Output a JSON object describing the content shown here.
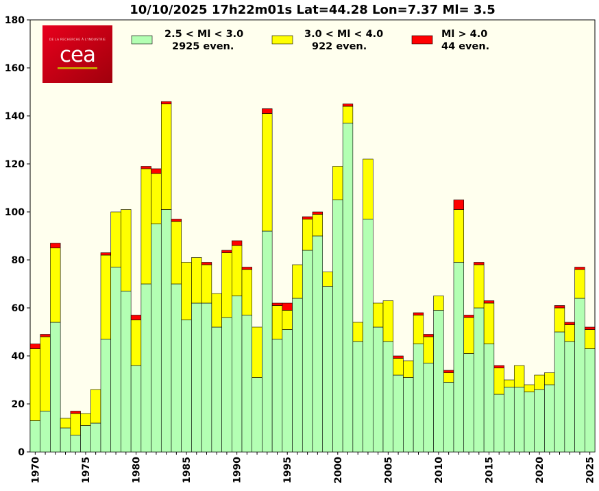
{
  "chart_data": {
    "type": "bar",
    "stacked": true,
    "title": "10/10/2025 17h22m01s Lat=44.28 Lon=7.37 Ml= 3.5",
    "xlabel": "",
    "ylabel": "",
    "ylim": [
      0,
      180
    ],
    "yticks": [
      0,
      20,
      40,
      60,
      80,
      100,
      120,
      140,
      160,
      180
    ],
    "xticks": [
      "1970",
      "1975",
      "1980",
      "1985",
      "1990",
      "1995",
      "2000",
      "2005",
      "2010",
      "2015",
      "2020",
      "2025"
    ],
    "x": [
      1970,
      1971,
      1972,
      1973,
      1974,
      1975,
      1976,
      1977,
      1978,
      1979,
      1980,
      1981,
      1982,
      1983,
      1984,
      1985,
      1986,
      1987,
      1988,
      1989,
      1990,
      1991,
      1992,
      1993,
      1994,
      1995,
      1996,
      1997,
      1998,
      1999,
      2000,
      2001,
      2002,
      2003,
      2004,
      2005,
      2006,
      2007,
      2008,
      2009,
      2010,
      2011,
      2012,
      2013,
      2014,
      2015,
      2016,
      2017,
      2018,
      2019,
      2020,
      2021,
      2022,
      2023,
      2024,
      2025
    ],
    "series": [
      {
        "name": "2.5 < Ml <  3.0",
        "count_label": "2925 even.",
        "color": "#b3ffb3",
        "values": [
          13,
          17,
          54,
          10,
          7,
          11,
          12,
          47,
          77,
          67,
          36,
          70,
          95,
          101,
          70,
          55,
          62,
          62,
          52,
          56,
          65,
          57,
          31,
          92,
          47,
          51,
          64,
          84,
          90,
          69,
          105,
          137,
          46,
          97,
          52,
          46,
          32,
          31,
          45,
          37,
          59,
          29,
          79,
          41,
          60,
          45,
          24,
          27,
          27,
          25,
          26,
          28,
          50,
          46,
          64,
          43
        ]
      },
      {
        "name": "3.0 < Ml <  4.0",
        "count_label": "922 even.",
        "color": "#ffff00",
        "values": [
          30,
          31,
          31,
          4,
          9,
          5,
          14,
          35,
          23,
          34,
          19,
          48,
          21,
          44,
          26,
          24,
          19,
          16,
          14,
          27,
          21,
          19,
          21,
          49,
          14,
          8,
          14,
          13,
          9,
          6,
          14,
          7,
          8,
          25,
          10,
          17,
          7,
          7,
          12,
          11,
          6,
          4,
          22,
          15,
          18,
          17,
          11,
          3,
          9,
          3,
          6,
          5,
          10,
          7,
          12,
          8
        ]
      },
      {
        "name": "Ml >  4.0",
        "count_label": "44 even.",
        "color": "#ff0000",
        "values": [
          2,
          1,
          2,
          0,
          1,
          0,
          0,
          1,
          0,
          0,
          2,
          1,
          2,
          1,
          1,
          0,
          0,
          1,
          0,
          1,
          2,
          1,
          0,
          2,
          1,
          3,
          0,
          1,
          1,
          0,
          0,
          1,
          0,
          0,
          0,
          0,
          1,
          0,
          1,
          1,
          0,
          1,
          4,
          1,
          1,
          1,
          1,
          0,
          0,
          0,
          0,
          0,
          1,
          1,
          1,
          1
        ]
      }
    ],
    "legend_position": "top",
    "background": "#ffffee",
    "logo_text": {
      "small": "DE LA RECHERCHE À L'INDUSTRIE",
      "big": "cea"
    }
  }
}
